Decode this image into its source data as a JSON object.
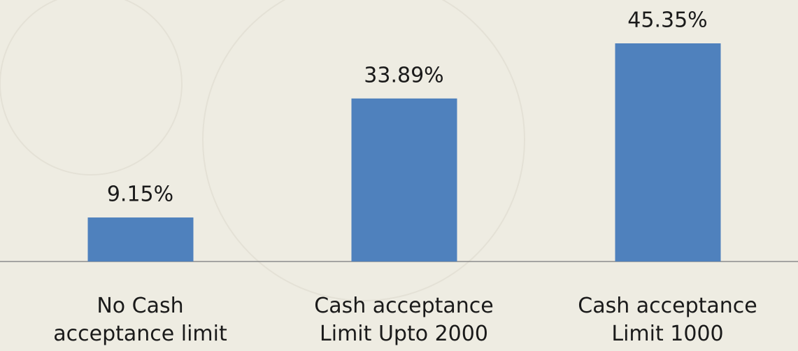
{
  "chart_data": {
    "type": "bar",
    "categories": [
      "No Cash\nacceptance limit",
      "Cash acceptance\nLimit Upto 2000",
      "Cash acceptance\nLimit 1000"
    ],
    "values": [
      9.15,
      33.89,
      45.35
    ],
    "value_labels": [
      "9.15%",
      "33.89%",
      "45.35%"
    ],
    "color": "#4f81bd"
  }
}
